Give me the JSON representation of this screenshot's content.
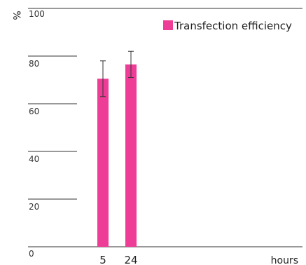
{
  "chart_data": {
    "type": "bar",
    "categories": [
      "5",
      "24"
    ],
    "series": [
      {
        "name": "Transfection efficiency",
        "values": [
          70.5,
          76.5
        ],
        "error": [
          7.5,
          5.5
        ],
        "color": "#ee3d96"
      }
    ],
    "ylabel": "%",
    "xlabel": "hours",
    "ylim": [
      0,
      100
    ],
    "yticks": [
      0,
      20,
      40,
      60,
      80,
      100
    ],
    "grid": false,
    "legend": "top-right",
    "colors": {
      "axis": "#333333",
      "bar": "#ee3d96",
      "error_bar": "#333333"
    }
  }
}
